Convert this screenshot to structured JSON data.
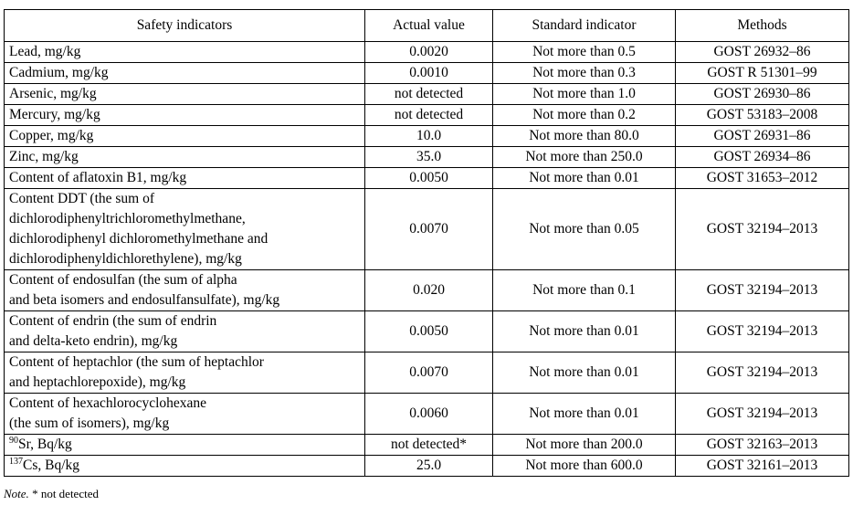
{
  "table": {
    "headers": [
      "Safety indicators",
      "Actual value",
      "Standard indicator",
      "Methods"
    ],
    "rows": [
      {
        "indicator": [
          "Lead, mg/kg"
        ],
        "actual": "0.0020",
        "standard": "Not more than 0.5",
        "method": "GOST 26932–86"
      },
      {
        "indicator": [
          "Cadmium, mg/kg"
        ],
        "actual": "0.0010",
        "standard": "Not more than 0.3",
        "method": "GOST R 51301–99"
      },
      {
        "indicator": [
          "Arsenic, mg/kg"
        ],
        "actual": "not detected",
        "standard": "Not more than 1.0",
        "method": "GOST 26930–86"
      },
      {
        "indicator": [
          "Mercury, mg/kg"
        ],
        "actual": "not detected",
        "standard": "Not more than 0.2",
        "method": "GOST 53183–2008"
      },
      {
        "indicator": [
          "Copper, mg/kg"
        ],
        "actual": "10.0",
        "standard": "Not more than 80.0",
        "method": "GOST 26931–86"
      },
      {
        "indicator": [
          "Zinc, mg/kg"
        ],
        "actual": "35.0",
        "standard": "Not more than 250.0",
        "method": "GOST 26934–86"
      },
      {
        "indicator": [
          "Content of aflatoxin B1, mg/kg"
        ],
        "actual": "0.0050",
        "standard": "Not more than 0.01",
        "method": "GOST 31653–2012"
      },
      {
        "indicator": [
          "Content DDT (the sum of",
          "dichlorodiphenyltrichloromethylmethane,",
          "dichlorodiphenyl dichloromethylmethane and",
          "dichlorodiphenyldichlorethylene), mg/kg"
        ],
        "actual": "0.0070",
        "standard": "Not more than 0.05",
        "method": "GOST 32194–2013"
      },
      {
        "indicator": [
          "Content of endosulfan (the sum of alpha",
          "and beta isomers and endosulfansulfate), mg/kg"
        ],
        "actual": "0.020",
        "standard": "Not more than 0.1",
        "method": "GOST 32194–2013"
      },
      {
        "indicator": [
          "Content of endrin (the sum of endrin",
          "and delta-keto endrin), mg/kg"
        ],
        "actual": "0.0050",
        "standard": "Not more than 0.01",
        "method": "GOST 32194–2013"
      },
      {
        "indicator": [
          "Content of heptachlor (the sum of heptachlor",
          "and heptachlorepoxide), mg/kg"
        ],
        "actual": "0.0070",
        "standard": "Not more than 0.01",
        "method": "GOST 32194–2013"
      },
      {
        "indicator": [
          "Content of hexachlorocyclohexane",
          "(the sum of isomers), mg/kg"
        ],
        "actual": "0.0060",
        "standard": "Not more than 0.01",
        "method": "GOST 32194–2013"
      },
      {
        "sup": "90",
        "indicator": [
          "Sr, Bq/kg"
        ],
        "actual": "not detected*",
        "standard": "Not more than 200.0",
        "method": "GOST 32163–2013"
      },
      {
        "sup": "137",
        "indicator": [
          "Cs, Bq/kg"
        ],
        "actual": "25.0",
        "standard": "Not more than 600.0",
        "method": "GOST 32161–2013"
      }
    ]
  },
  "note": {
    "label": "Note.",
    "text": " * not detected"
  }
}
